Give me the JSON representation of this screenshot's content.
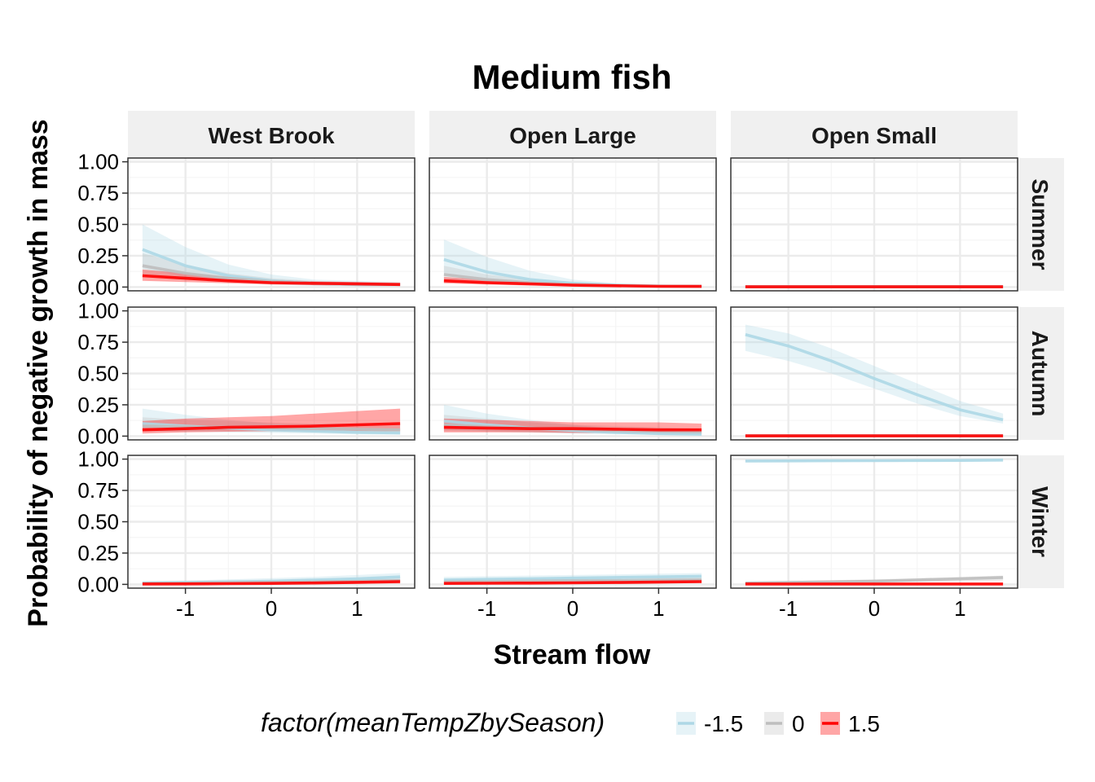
{
  "chart_data": {
    "type": "line",
    "title": "Medium fish",
    "xlabel": "Stream flow",
    "ylabel": "Probability of negative growth in mass",
    "xlim": [
      -1.67,
      1.67
    ],
    "ylim": [
      -0.03,
      1.03
    ],
    "x_ticks": [
      -1,
      0,
      1
    ],
    "y_ticks": [
      0,
      0.25,
      0.5,
      0.75,
      1
    ],
    "y_tick_labels": [
      "0.00",
      "0.25",
      "0.50",
      "0.75",
      "1.00"
    ],
    "grid": true,
    "columns": [
      "West Brook",
      "Open Large",
      "Open Small"
    ],
    "rows": [
      "Summer",
      "Autumn",
      "Winter"
    ],
    "legend": {
      "title": "factor(meanTempZbySeason)",
      "position": "bottom",
      "entries": [
        {
          "label": "-1.5",
          "line_color": "#add8e6",
          "band_color": "#add8e6"
        },
        {
          "label": "0",
          "line_color": "#bebebe",
          "band_color": "#bebebe"
        },
        {
          "label": "1.5",
          "line_color": "#ff0000",
          "band_color": "#ff0000"
        }
      ]
    },
    "x": [
      -1.5,
      -1,
      -0.5,
      0,
      0.5,
      1,
      1.5
    ],
    "panels": [
      {
        "row": "Summer",
        "column": "West Brook",
        "series": [
          {
            "level": "-1.5",
            "fit": [
              0.3,
              0.17,
              0.09,
              0.05,
              0.03,
              0.02,
              0.02
            ],
            "lower": [
              0.15,
              0.08,
              0.04,
              0.02,
              0.01,
              0.005,
              0.005
            ],
            "upper": [
              0.5,
              0.32,
              0.18,
              0.1,
              0.06,
              0.05,
              0.04
            ]
          },
          {
            "level": "0",
            "fit": [
              0.17,
              0.11,
              0.07,
              0.045,
              0.03,
              0.02,
              0.02
            ],
            "lower": [
              0.1,
              0.06,
              0.04,
              0.025,
              0.015,
              0.01,
              0.01
            ],
            "upper": [
              0.27,
              0.18,
              0.11,
              0.07,
              0.05,
              0.04,
              0.03
            ]
          },
          {
            "level": "1.5",
            "fit": [
              0.09,
              0.07,
              0.05,
              0.035,
              0.03,
              0.025,
              0.02
            ],
            "lower": [
              0.05,
              0.04,
              0.03,
              0.02,
              0.015,
              0.01,
              0.01
            ],
            "upper": [
              0.14,
              0.11,
              0.08,
              0.06,
              0.045,
              0.04,
              0.035
            ]
          }
        ]
      },
      {
        "row": "Summer",
        "column": "Open Large",
        "series": [
          {
            "level": "-1.5",
            "fit": [
              0.22,
              0.12,
              0.06,
              0.03,
              0.015,
              0.008,
              0.005
            ],
            "lower": [
              0.1,
              0.05,
              0.025,
              0.012,
              0.006,
              0.003,
              0.002
            ],
            "upper": [
              0.38,
              0.24,
              0.13,
              0.06,
              0.03,
              0.015,
              0.01
            ]
          },
          {
            "level": "0",
            "fit": [
              0.1,
              0.06,
              0.035,
              0.02,
              0.012,
              0.007,
              0.005
            ],
            "lower": [
              0.05,
              0.03,
              0.02,
              0.01,
              0.006,
              0.003,
              0.002
            ],
            "upper": [
              0.17,
              0.1,
              0.06,
              0.035,
              0.02,
              0.012,
              0.008
            ]
          },
          {
            "level": "1.5",
            "fit": [
              0.05,
              0.035,
              0.025,
              0.015,
              0.01,
              0.006,
              0.005
            ],
            "lower": [
              0.03,
              0.02,
              0.012,
              0.008,
              0.005,
              0.003,
              0.002
            ],
            "upper": [
              0.08,
              0.06,
              0.04,
              0.025,
              0.015,
              0.01,
              0.008
            ]
          }
        ]
      },
      {
        "row": "Summer",
        "column": "Open Small",
        "series": [
          {
            "level": "-1.5",
            "fit": [
              0.003,
              0.003,
              0.003,
              0.003,
              0.003,
              0.003,
              0.003
            ],
            "lower": [
              0,
              0,
              0,
              0,
              0,
              0,
              0
            ],
            "upper": [
              0.008,
              0.008,
              0.008,
              0.008,
              0.008,
              0.008,
              0.008
            ]
          },
          {
            "level": "0",
            "fit": [
              0.002,
              0.002,
              0.002,
              0.002,
              0.002,
              0.002,
              0.002
            ],
            "lower": [
              0,
              0,
              0,
              0,
              0,
              0,
              0
            ],
            "upper": [
              0.006,
              0.006,
              0.006,
              0.006,
              0.006,
              0.006,
              0.006
            ]
          },
          {
            "level": "1.5",
            "fit": [
              0.002,
              0.002,
              0.002,
              0.002,
              0.002,
              0.002,
              0.002
            ],
            "lower": [
              0,
              0,
              0,
              0,
              0,
              0,
              0
            ],
            "upper": [
              0.005,
              0.005,
              0.005,
              0.005,
              0.005,
              0.005,
              0.005
            ]
          }
        ]
      },
      {
        "row": "Autumn",
        "column": "West Brook",
        "series": [
          {
            "level": "-1.5",
            "fit": [
              0.1,
              0.08,
              0.065,
              0.05,
              0.04,
              0.03,
              0.025
            ],
            "lower": [
              0.04,
              0.035,
              0.03,
              0.025,
              0.02,
              0.015,
              0.01
            ],
            "upper": [
              0.22,
              0.17,
              0.13,
              0.1,
              0.08,
              0.06,
              0.05
            ]
          },
          {
            "level": "0",
            "fit": [
              0.08,
              0.075,
              0.07,
              0.065,
              0.06,
              0.055,
              0.05
            ],
            "lower": [
              0.04,
              0.04,
              0.04,
              0.035,
              0.03,
              0.025,
              0.02
            ],
            "upper": [
              0.15,
              0.13,
              0.12,
              0.11,
              0.1,
              0.1,
              0.1
            ]
          },
          {
            "level": "1.5",
            "fit": [
              0.05,
              0.06,
              0.07,
              0.075,
              0.08,
              0.09,
              0.1
            ],
            "lower": [
              0.02,
              0.03,
              0.035,
              0.04,
              0.04,
              0.04,
              0.04
            ],
            "upper": [
              0.12,
              0.14,
              0.15,
              0.16,
              0.18,
              0.2,
              0.22
            ]
          }
        ]
      },
      {
        "row": "Autumn",
        "column": "Open Large",
        "series": [
          {
            "level": "-1.5",
            "fit": [
              0.12,
              0.09,
              0.065,
              0.045,
              0.03,
              0.02,
              0.015
            ],
            "lower": [
              0.05,
              0.04,
              0.03,
              0.02,
              0.015,
              0.01,
              0.005
            ],
            "upper": [
              0.25,
              0.18,
              0.13,
              0.09,
              0.06,
              0.04,
              0.03
            ]
          },
          {
            "level": "0",
            "fit": [
              0.09,
              0.075,
              0.065,
              0.055,
              0.045,
              0.04,
              0.035
            ],
            "lower": [
              0.04,
              0.035,
              0.03,
              0.025,
              0.02,
              0.015,
              0.01
            ],
            "upper": [
              0.17,
              0.14,
              0.11,
              0.09,
              0.08,
              0.07,
              0.06
            ]
          },
          {
            "level": "1.5",
            "fit": [
              0.07,
              0.065,
              0.06,
              0.06,
              0.055,
              0.05,
              0.05
            ],
            "lower": [
              0.03,
              0.03,
              0.03,
              0.025,
              0.025,
              0.02,
              0.02
            ],
            "upper": [
              0.14,
              0.13,
              0.12,
              0.11,
              0.11,
              0.11,
              0.1
            ]
          }
        ]
      },
      {
        "row": "Autumn",
        "column": "Open Small",
        "series": [
          {
            "level": "-1.5",
            "fit": [
              0.81,
              0.72,
              0.6,
              0.46,
              0.33,
              0.21,
              0.13
            ],
            "lower": [
              0.68,
              0.6,
              0.5,
              0.38,
              0.26,
              0.16,
              0.1
            ],
            "upper": [
              0.89,
              0.82,
              0.7,
              0.56,
              0.42,
              0.28,
              0.18
            ]
          },
          {
            "level": "0",
            "fit": [
              0.003,
              0.003,
              0.003,
              0.003,
              0.003,
              0.003,
              0.003
            ],
            "lower": [
              0,
              0,
              0,
              0,
              0,
              0,
              0
            ],
            "upper": [
              0.008,
              0.008,
              0.008,
              0.008,
              0.008,
              0.008,
              0.008
            ]
          },
          {
            "level": "1.5",
            "fit": [
              0.002,
              0.002,
              0.002,
              0.002,
              0.002,
              0.002,
              0.002
            ],
            "lower": [
              0,
              0,
              0,
              0,
              0,
              0,
              0
            ],
            "upper": [
              0.006,
              0.006,
              0.006,
              0.006,
              0.006,
              0.006,
              0.006
            ]
          }
        ]
      },
      {
        "row": "Winter",
        "column": "West Brook",
        "series": [
          {
            "level": "-1.5",
            "fit": [
              0.01,
              0.015,
              0.02,
              0.025,
              0.035,
              0.045,
              0.06
            ],
            "lower": [
              0.003,
              0.005,
              0.008,
              0.01,
              0.015,
              0.02,
              0.03
            ],
            "upper": [
              0.025,
              0.03,
              0.04,
              0.05,
              0.06,
              0.075,
              0.09
            ]
          },
          {
            "level": "0",
            "fit": [
              0.008,
              0.01,
              0.013,
              0.016,
              0.02,
              0.025,
              0.03
            ],
            "lower": [
              0.003,
              0.004,
              0.006,
              0.008,
              0.01,
              0.012,
              0.015
            ],
            "upper": [
              0.018,
              0.02,
              0.025,
              0.03,
              0.035,
              0.045,
              0.055
            ]
          },
          {
            "level": "1.5",
            "fit": [
              0.003,
              0.004,
              0.006,
              0.008,
              0.011,
              0.016,
              0.022
            ],
            "lower": [
              0.001,
              0.0015,
              0.002,
              0.003,
              0.004,
              0.006,
              0.008
            ],
            "upper": [
              0.008,
              0.01,
              0.013,
              0.017,
              0.022,
              0.03,
              0.04
            ]
          }
        ]
      },
      {
        "row": "Winter",
        "column": "Open Large",
        "series": [
          {
            "level": "-1.5",
            "fit": [
              0.035,
              0.04,
              0.045,
              0.05,
              0.055,
              0.06,
              0.065
            ],
            "lower": [
              0.015,
              0.02,
              0.022,
              0.025,
              0.028,
              0.03,
              0.035
            ],
            "upper": [
              0.06,
              0.065,
              0.07,
              0.075,
              0.08,
              0.085,
              0.09
            ]
          },
          {
            "level": "0",
            "fit": [
              0.02,
              0.022,
              0.025,
              0.028,
              0.03,
              0.033,
              0.036
            ],
            "lower": [
              0.008,
              0.01,
              0.012,
              0.014,
              0.016,
              0.018,
              0.02
            ],
            "upper": [
              0.035,
              0.038,
              0.042,
              0.046,
              0.05,
              0.055,
              0.06
            ]
          },
          {
            "level": "1.5",
            "fit": [
              0.008,
              0.009,
              0.01,
              0.012,
              0.015,
              0.018,
              0.022
            ],
            "lower": [
              0.003,
              0.004,
              0.005,
              0.006,
              0.007,
              0.009,
              0.011
            ],
            "upper": [
              0.016,
              0.018,
              0.02,
              0.024,
              0.028,
              0.033,
              0.04
            ]
          }
        ]
      },
      {
        "row": "Winter",
        "column": "Open Small",
        "series": [
          {
            "level": "-1.5",
            "fit": [
              0.985,
              0.986,
              0.987,
              0.988,
              0.989,
              0.99,
              0.992
            ],
            "lower": [
              0.975,
              0.976,
              0.977,
              0.978,
              0.979,
              0.98,
              0.982
            ],
            "upper": [
              0.993,
              0.994,
              0.994,
              0.995,
              0.996,
              0.997,
              0.998
            ]
          },
          {
            "level": "0",
            "fit": [
              0.01,
              0.015,
              0.02,
              0.025,
              0.035,
              0.045,
              0.055
            ],
            "lower": [
              0.004,
              0.006,
              0.01,
              0.013,
              0.018,
              0.024,
              0.03
            ],
            "upper": [
              0.02,
              0.026,
              0.033,
              0.04,
              0.05,
              0.06,
              0.07
            ]
          },
          {
            "level": "1.5",
            "fit": [
              0.003,
              0.003,
              0.003,
              0.003,
              0.003,
              0.003,
              0.003
            ],
            "lower": [
              0,
              0,
              0,
              0,
              0,
              0,
              0
            ],
            "upper": [
              0.008,
              0.008,
              0.008,
              0.008,
              0.008,
              0.008,
              0.008
            ]
          }
        ]
      }
    ]
  }
}
